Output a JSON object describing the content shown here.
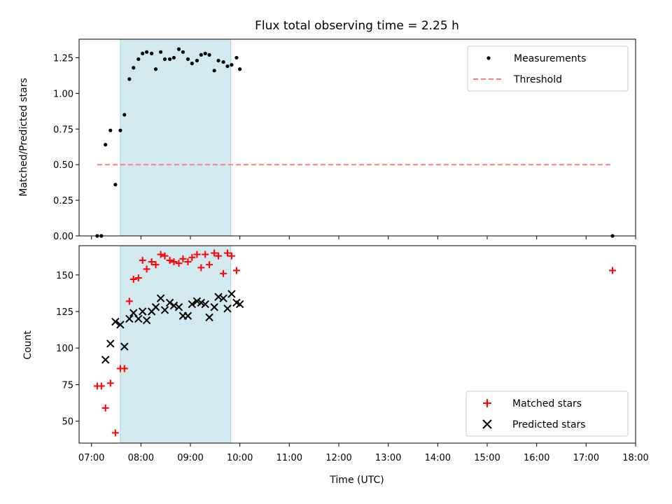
{
  "chart_data": [
    {
      "type": "scatter",
      "title": "Flux total observing time = 2.25 h",
      "xlabel": "",
      "ylabel": "Matched/Predicted stars",
      "xlim": [
        "06:45",
        "18:00"
      ],
      "ylim": [
        0,
        1.38
      ],
      "x_ticks": [],
      "y_ticks": [
        {
          "value": 0,
          "label": "0.00"
        },
        {
          "value": 0.25,
          "label": "0.25"
        },
        {
          "value": 0.5,
          "label": "0.50"
        },
        {
          "value": 0.75,
          "label": "0.75"
        },
        {
          "value": 1.0,
          "label": "1.00"
        },
        {
          "value": 1.25,
          "label": "1.25"
        }
      ],
      "highlight_span": {
        "x_start": "07:35",
        "x_end": "09:49",
        "color": "#d3e9f0"
      },
      "legend": {
        "position": "top-right"
      },
      "series": [
        {
          "name": "Measurements",
          "kind": "scatter",
          "marker": "dot",
          "color": "#000000",
          "points": [
            [
              "07:07",
              0.0
            ],
            [
              "07:12",
              0.0
            ],
            [
              "07:17",
              0.64
            ],
            [
              "07:23",
              0.74
            ],
            [
              "07:29",
              0.36
            ],
            [
              "07:35",
              0.74
            ],
            [
              "07:40",
              0.85
            ],
            [
              "07:46",
              1.1
            ],
            [
              "07:51",
              1.18
            ],
            [
              "07:57",
              1.24
            ],
            [
              "08:02",
              1.28
            ],
            [
              "08:07",
              1.29
            ],
            [
              "08:13",
              1.28
            ],
            [
              "08:18",
              1.17
            ],
            [
              "08:24",
              1.29
            ],
            [
              "08:29",
              1.24
            ],
            [
              "08:35",
              1.24
            ],
            [
              "08:40",
              1.25
            ],
            [
              "08:46",
              1.31
            ],
            [
              "08:51",
              1.29
            ],
            [
              "08:57",
              1.24
            ],
            [
              "09:02",
              1.21
            ],
            [
              "09:08",
              1.23
            ],
            [
              "09:13",
              1.27
            ],
            [
              "09:18",
              1.28
            ],
            [
              "09:23",
              1.27
            ],
            [
              "09:29",
              1.16
            ],
            [
              "09:34",
              1.23
            ],
            [
              "09:40",
              1.22
            ],
            [
              "09:45",
              1.19
            ],
            [
              "09:50",
              1.2
            ],
            [
              "09:56",
              1.25
            ],
            [
              "10:00",
              1.17
            ],
            [
              "17:32",
              0.0
            ]
          ]
        },
        {
          "name": "Threshold",
          "kind": "line",
          "dashed": true,
          "color": "#ff7f7f",
          "points": [
            [
              "07:07",
              0.5
            ],
            [
              "17:32",
              0.5
            ]
          ]
        }
      ]
    },
    {
      "type": "scatter",
      "title": "",
      "xlabel": "Time (UTC)",
      "ylabel": "Count",
      "xlim": [
        "06:45",
        "18:00"
      ],
      "ylim": [
        35,
        170
      ],
      "x_ticks": [
        "07:00",
        "08:00",
        "09:00",
        "10:00",
        "11:00",
        "12:00",
        "13:00",
        "14:00",
        "15:00",
        "16:00",
        "17:00",
        "18:00"
      ],
      "y_ticks": [
        {
          "value": 50,
          "label": "50"
        },
        {
          "value": 75,
          "label": "75"
        },
        {
          "value": 100,
          "label": "100"
        },
        {
          "value": 125,
          "label": "125"
        },
        {
          "value": 150,
          "label": "150"
        }
      ],
      "highlight_span": {
        "x_start": "07:35",
        "x_end": "09:49",
        "color": "#d3e9f0"
      },
      "legend": {
        "position": "bottom-right"
      },
      "series": [
        {
          "name": "Matched stars",
          "kind": "scatter",
          "marker": "plus",
          "color": "#ff0000",
          "points": [
            [
              "07:07",
              74
            ],
            [
              "07:12",
              74
            ],
            [
              "07:17",
              59
            ],
            [
              "07:23",
              76
            ],
            [
              "07:29",
              42
            ],
            [
              "07:35",
              86
            ],
            [
              "07:40",
              86
            ],
            [
              "07:46",
              132
            ],
            [
              "07:51",
              147
            ],
            [
              "07:57",
              148
            ],
            [
              "08:02",
              160
            ],
            [
              "08:07",
              154
            ],
            [
              "08:13",
              159
            ],
            [
              "08:18",
              157
            ],
            [
              "08:24",
              164
            ],
            [
              "08:29",
              163
            ],
            [
              "08:35",
              160
            ],
            [
              "08:40",
              159
            ],
            [
              "08:46",
              158
            ],
            [
              "08:51",
              161
            ],
            [
              "08:57",
              159
            ],
            [
              "09:02",
              162
            ],
            [
              "09:08",
              164
            ],
            [
              "09:13",
              155
            ],
            [
              "09:18",
              164
            ],
            [
              "09:23",
              157
            ],
            [
              "09:29",
              165
            ],
            [
              "09:34",
              163
            ],
            [
              "09:40",
              151
            ],
            [
              "09:45",
              165
            ],
            [
              "09:50",
              163
            ],
            [
              "09:56",
              153
            ],
            [
              "17:32",
              153
            ]
          ]
        },
        {
          "name": "Predicted stars",
          "kind": "scatter",
          "marker": "x",
          "color": "#000000",
          "points": [
            [
              "07:17",
              92
            ],
            [
              "07:23",
              103
            ],
            [
              "07:29",
              118
            ],
            [
              "07:35",
              116
            ],
            [
              "07:40",
              101
            ],
            [
              "07:46",
              120
            ],
            [
              "07:51",
              124
            ],
            [
              "07:57",
              120
            ],
            [
              "08:02",
              125
            ],
            [
              "08:07",
              119
            ],
            [
              "08:13",
              125
            ],
            [
              "08:18",
              128
            ],
            [
              "08:24",
              134
            ],
            [
              "08:29",
              126
            ],
            [
              "08:35",
              131
            ],
            [
              "08:40",
              129
            ],
            [
              "08:46",
              128
            ],
            [
              "08:51",
              122
            ],
            [
              "08:57",
              122
            ],
            [
              "09:02",
              130
            ],
            [
              "09:08",
              132
            ],
            [
              "09:13",
              131
            ],
            [
              "09:18",
              130
            ],
            [
              "09:23",
              121
            ],
            [
              "09:29",
              128
            ],
            [
              "09:34",
              135
            ],
            [
              "09:40",
              134
            ],
            [
              "09:45",
              127
            ],
            [
              "09:50",
              137
            ],
            [
              "09:56",
              131
            ],
            [
              "10:00",
              130
            ]
          ]
        }
      ]
    }
  ]
}
